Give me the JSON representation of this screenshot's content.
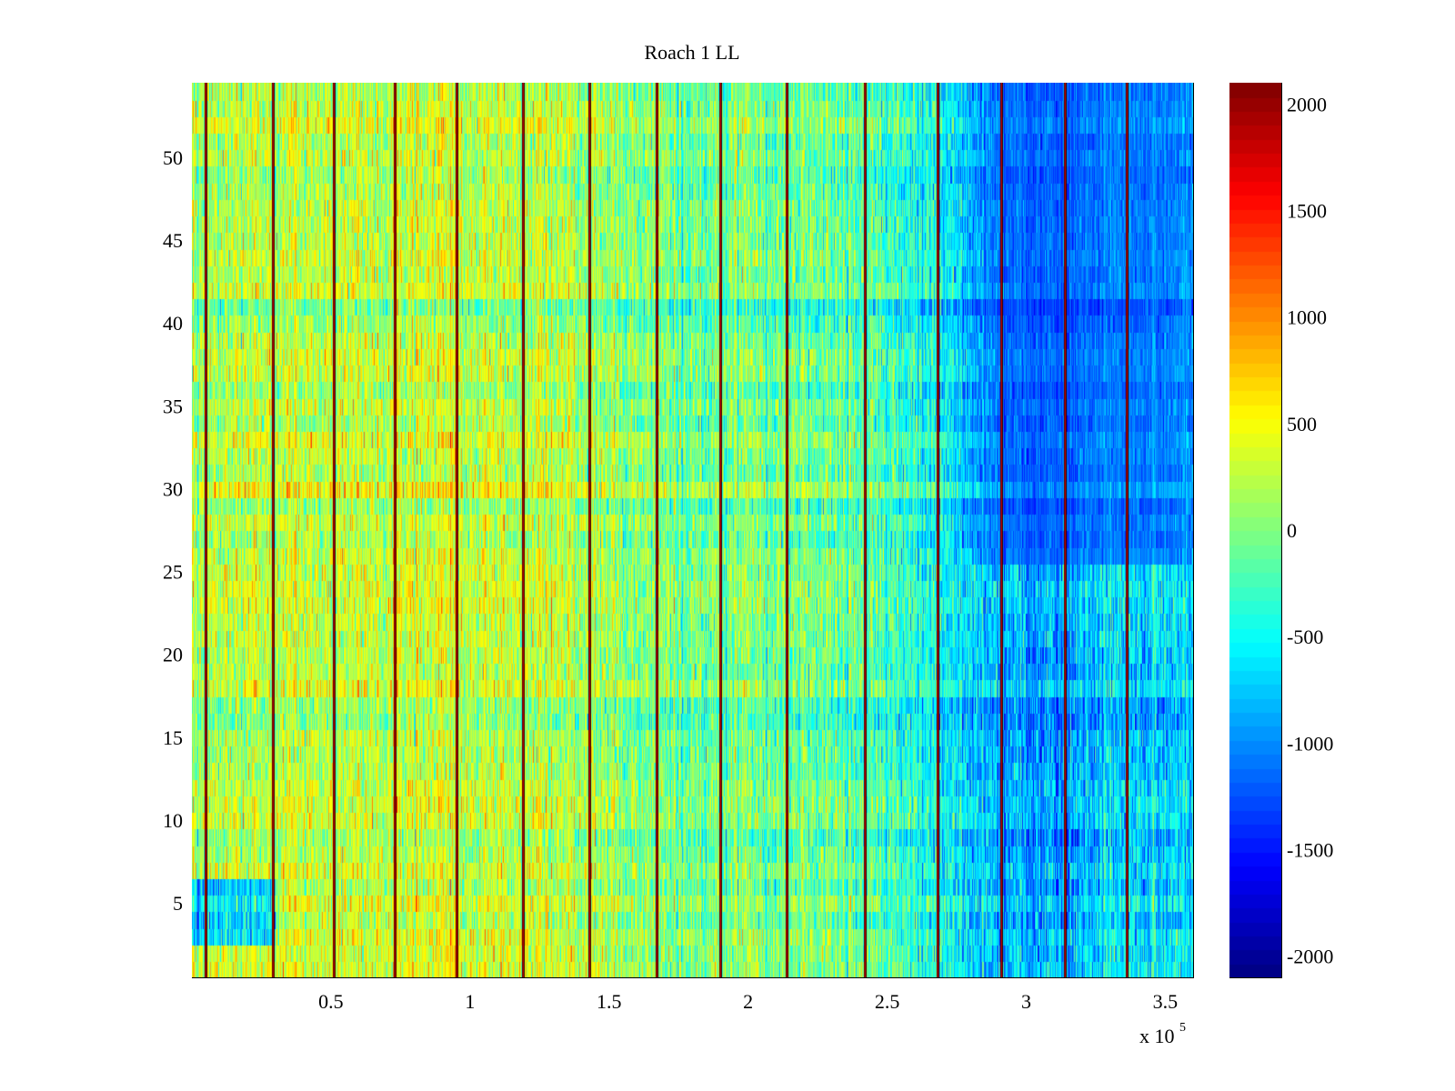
{
  "chart_data": {
    "type": "heatmap",
    "title": "Roach 1 LL",
    "xlabel": "",
    "ylabel": "",
    "x_exponent_label": {
      "base": "x 10",
      "power": "5"
    },
    "xlim": [
      0,
      3.6
    ],
    "ylim": [
      0.5,
      54.5
    ],
    "x_ticks": [
      0.5,
      1,
      1.5,
      2,
      2.5,
      3,
      3.5
    ],
    "x_tick_labels": [
      "0.5",
      "1",
      "1.5",
      "2",
      "2.5",
      "3",
      "3.5"
    ],
    "y_ticks": [
      5,
      10,
      15,
      20,
      25,
      30,
      35,
      40,
      45,
      50
    ],
    "y_tick_labels": [
      "5",
      "10",
      "15",
      "20",
      "25",
      "30",
      "35",
      "40",
      "45",
      "50"
    ],
    "rows": 54,
    "colormap": "jet",
    "colorbar": {
      "clim": [
        -2100,
        2100
      ],
      "ticks": [
        2000,
        1500,
        1000,
        500,
        0,
        -500,
        -1000,
        -1500,
        -2000
      ],
      "tick_labels": [
        "2000",
        "1500",
        "1000",
        "500",
        "0",
        "-500",
        "-1000",
        "-1500",
        "-2000"
      ]
    },
    "vertical_event_lines_x": [
      0.05,
      0.29,
      0.51,
      0.73,
      0.95,
      1.19,
      1.43,
      1.67,
      1.9,
      2.14,
      2.42,
      2.68,
      2.91,
      3.14,
      3.36
    ],
    "value_trend": {
      "note": "estimated mean value per x-region",
      "x": [
        0,
        0.3,
        0.7,
        1.0,
        1.3,
        1.7,
        2.0,
        2.4,
        2.7,
        2.9,
        3.1,
        3.3,
        3.6
      ],
      "mean": [
        200,
        250,
        350,
        300,
        250,
        0,
        -50,
        -150,
        -500,
        -800,
        -950,
        -700,
        -650
      ]
    },
    "low_region": {
      "x_range": [
        2.7,
        3.6
      ],
      "y_range": [
        26,
        54
      ],
      "approx_value": -1300
    }
  }
}
